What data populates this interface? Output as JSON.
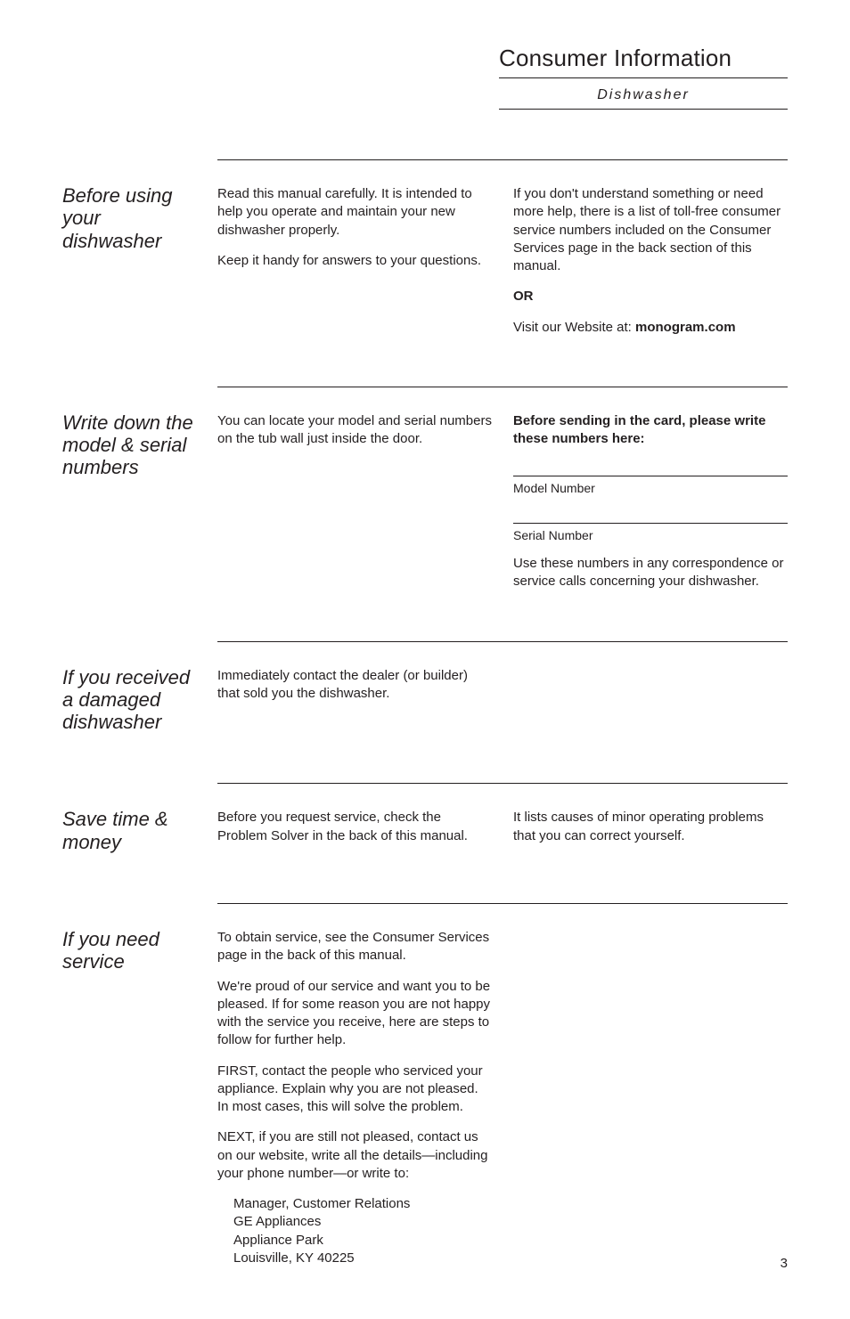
{
  "header": {
    "title": "Consumer Information",
    "subtitle": "Dishwasher"
  },
  "page_number": "3",
  "sections": [
    {
      "heading": "Before using your dishwasher",
      "left": [
        "Read this manual carefully. It is intended to help you operate and maintain your new dishwasher properly.",
        "Keep it handy for answers to your questions."
      ],
      "right_intro": "If you don't understand something or need more help, there is a list of toll-free consumer service numbers included on the Consumer Services page in the back section of this manual.",
      "or_label": "OR",
      "visit_prefix": "Visit our Website at: ",
      "visit_url": "monogram.com"
    },
    {
      "heading": "Write down the model & serial numbers",
      "left": [
        "You can locate your model and serial numbers on the tub wall just inside the door."
      ],
      "right_bold": "Before sending in the card, please write these numbers here:",
      "model_label": "Model Number",
      "serial_label": "Serial Number",
      "right_note": "Use these numbers in any correspondence or service calls concerning your dishwasher."
    },
    {
      "heading": "If you received a damaged dishwasher",
      "left": [
        "Immediately contact the dealer (or builder) that sold you the dishwasher."
      ]
    },
    {
      "heading": "Save time & money",
      "left": [
        "Before you request service, check the Problem Solver in the back of this manual."
      ],
      "right": [
        "It lists causes of minor operating problems that you can correct yourself."
      ]
    },
    {
      "heading": "If you need service",
      "left": [
        "To obtain service, see the Consumer Services page in the back of this manual.",
        "We're proud of our service and want you to be pleased. If for some reason you are not happy with the service you receive, here are steps to follow for further help.",
        "FIRST, contact the people who serviced your appliance. Explain why you are not pleased. In most cases, this will solve the problem.",
        "NEXT, if you are still not pleased, contact us on our website, write all the details—including your phone number—or write to:"
      ],
      "address": [
        "Manager, Customer Relations",
        "GE Appliances",
        "Appliance Park",
        "Louisville, KY 40225"
      ]
    }
  ]
}
